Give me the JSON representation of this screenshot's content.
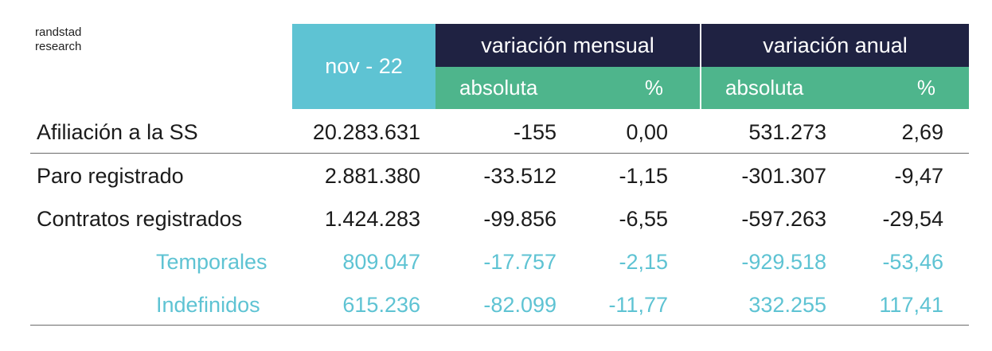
{
  "brand": {
    "line1": "randstad",
    "line2": "research"
  },
  "header": {
    "period": "nov - 22",
    "monthly": "variación mensual",
    "annual": "variación anual",
    "abs_label": "absoluta",
    "pct_label": "%"
  },
  "rows": [
    {
      "label": "Afiliación a la SS",
      "value": "20.283.631",
      "mm_abs": "-155",
      "mm_pct": "0,00",
      "ma_abs": "531.273",
      "ma_pct": "2,69"
    },
    {
      "label": "Paro registrado",
      "value": "2.881.380",
      "mm_abs": "-33.512",
      "mm_pct": "-1,15",
      "ma_abs": "-301.307",
      "ma_pct": "-9,47"
    },
    {
      "label": "Contratos registrados",
      "value": "1.424.283",
      "mm_abs": "-99.856",
      "mm_pct": "-6,55",
      "ma_abs": "-597.263",
      "ma_pct": "-29,54"
    },
    {
      "label": "Temporales",
      "value": "809.047",
      "mm_abs": "-17.757",
      "mm_pct": "-2,15",
      "ma_abs": "-929.518",
      "ma_pct": "-53,46"
    },
    {
      "label": "Indefinidos",
      "value": "615.236",
      "mm_abs": "-82.099",
      "mm_pct": "-11,77",
      "ma_abs": "332.255",
      "ma_pct": "117,41"
    }
  ],
  "colors": {
    "navy": "#1f2242",
    "teal": "#5ec3d3",
    "green": "#4eb58c"
  }
}
